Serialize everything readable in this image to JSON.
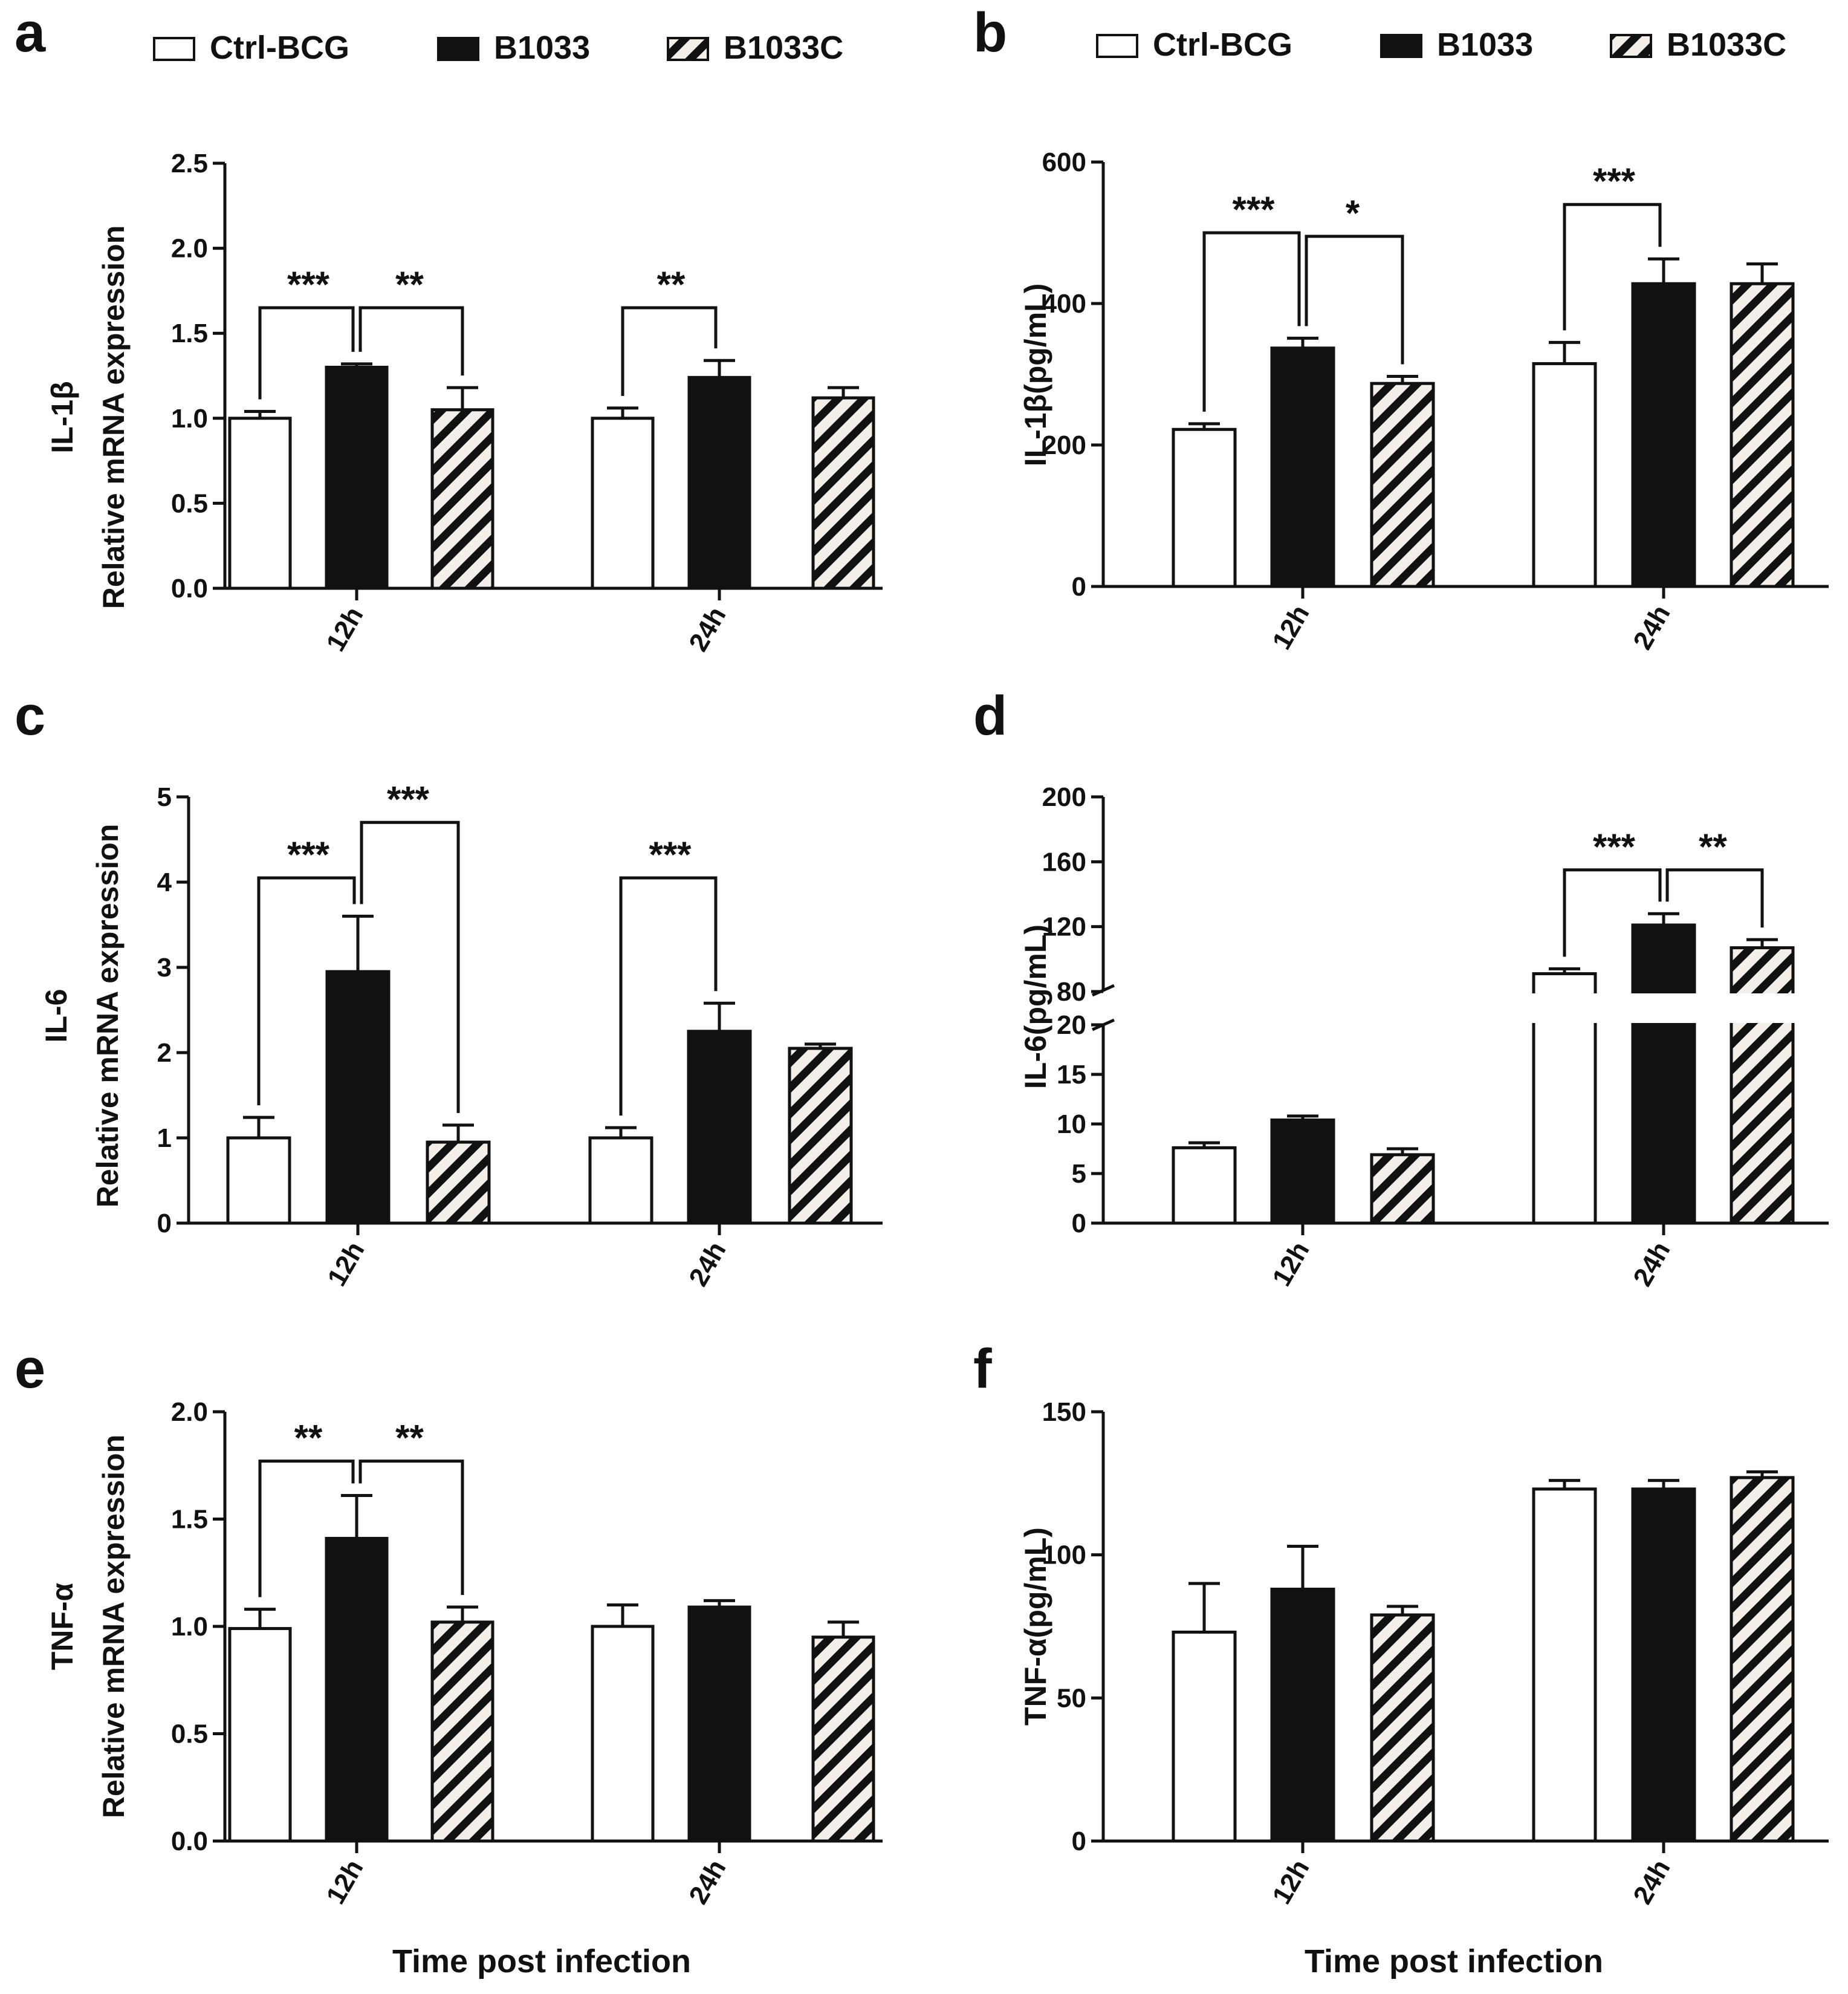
{
  "legend": [
    {
      "name": "Ctrl-BCG",
      "fill": "white"
    },
    {
      "name": "B1033",
      "fill": "black"
    },
    {
      "name": "B1033C",
      "fill": "hatch"
    }
  ],
  "colors": {
    "bar_dark": "#111111",
    "bar_light": "#ffffff",
    "axis": "#111111",
    "hatch_bg": "#f4eee8"
  },
  "chart_data": [
    {
      "panel": "a",
      "type": "bar",
      "ylabel_lines": [
        "IL-1β",
        "Relative mRNA expression"
      ],
      "categories": [
        "12h",
        "24h"
      ],
      "ylim": [
        0,
        2.5
      ],
      "yticks": [
        0.0,
        0.5,
        1.0,
        1.5,
        2.0,
        2.5
      ],
      "ytick_labels": [
        "0.0",
        "0.5",
        "1.0",
        "1.5",
        "2.0",
        "2.5"
      ],
      "xlabel": "",
      "series": [
        {
          "name": "Ctrl-BCG",
          "values": [
            1.0,
            1.0
          ],
          "errors": [
            0.04,
            0.06
          ]
        },
        {
          "name": "B1033",
          "values": [
            1.3,
            1.24
          ],
          "errors": [
            0.02,
            0.1
          ]
        },
        {
          "name": "B1033C",
          "values": [
            1.05,
            1.12
          ],
          "errors": [
            0.13,
            0.06
          ]
        }
      ],
      "significance": [
        {
          "category": 0,
          "from": 0,
          "to": 1,
          "label": "***",
          "level": 1.65
        },
        {
          "category": 0,
          "from": 1,
          "to": 2,
          "label": "**",
          "level": 1.65
        },
        {
          "category": 1,
          "from": 0,
          "to": 1,
          "label": "**",
          "level": 1.65
        }
      ]
    },
    {
      "panel": "b",
      "type": "bar",
      "ylabel_lines": [
        "IL-1β(pg/mL)"
      ],
      "categories": [
        "12h",
        "24h"
      ],
      "ylim": [
        0,
        600
      ],
      "yticks": [
        0,
        200,
        400,
        600
      ],
      "ytick_labels": [
        "0",
        "200",
        "400",
        "600"
      ],
      "xlabel": "",
      "series": [
        {
          "name": "Ctrl-BCG",
          "values": [
            222,
            315
          ],
          "errors": [
            8,
            30
          ]
        },
        {
          "name": "B1033",
          "values": [
            337,
            428
          ],
          "errors": [
            14,
            35
          ]
        },
        {
          "name": "B1033C",
          "values": [
            287,
            428
          ],
          "errors": [
            10,
            28
          ]
        }
      ],
      "significance": [
        {
          "category": 0,
          "from": 0,
          "to": 1,
          "label": "***",
          "level": 500
        },
        {
          "category": 0,
          "from": 1,
          "to": 2,
          "label": "*",
          "level": 495
        },
        {
          "category": 1,
          "from": 0,
          "to": 1,
          "label": "***",
          "level": 540
        }
      ]
    },
    {
      "panel": "c",
      "type": "bar",
      "ylabel_lines": [
        "IL-6",
        "Relative mRNA expression"
      ],
      "categories": [
        "12h",
        "24h"
      ],
      "ylim": [
        0,
        5
      ],
      "yticks": [
        0,
        1,
        2,
        3,
        4,
        5
      ],
      "ytick_labels": [
        "0",
        "1",
        "2",
        "3",
        "4",
        "5"
      ],
      "xlabel": "",
      "series": [
        {
          "name": "Ctrl-BCG",
          "values": [
            1.0,
            1.0
          ],
          "errors": [
            0.24,
            0.12
          ]
        },
        {
          "name": "B1033",
          "values": [
            2.95,
            2.25
          ],
          "errors": [
            0.65,
            0.33
          ]
        },
        {
          "name": "B1033C",
          "values": [
            0.95,
            2.05
          ],
          "errors": [
            0.2,
            0.05
          ]
        }
      ],
      "significance": [
        {
          "category": 0,
          "from": 0,
          "to": 1,
          "label": "***",
          "level": 4.05
        },
        {
          "category": 0,
          "from": 1,
          "to": 2,
          "label": "***",
          "level": 4.7
        },
        {
          "category": 1,
          "from": 0,
          "to": 1,
          "label": "***",
          "level": 4.05
        }
      ]
    },
    {
      "panel": "d",
      "type": "bar",
      "ylabel_lines": [
        "IL-6(pg/mL)"
      ],
      "categories": [
        "12h",
        "24h"
      ],
      "broken_axis": {
        "lower": [
          0,
          20
        ],
        "upper": [
          80,
          200
        ]
      },
      "ylim": [
        0,
        200
      ],
      "yticks": [
        0,
        5,
        10,
        15,
        20,
        80,
        120,
        160,
        200
      ],
      "ytick_labels": [
        "0",
        "5",
        "10",
        "15",
        "20",
        "80",
        "120",
        "160",
        "200"
      ],
      "xlabel": "",
      "series": [
        {
          "name": "Ctrl-BCG",
          "values": [
            7.6,
            91
          ],
          "errors": [
            0.5,
            3
          ]
        },
        {
          "name": "B1033",
          "values": [
            10.4,
            121
          ],
          "errors": [
            0.4,
            7
          ]
        },
        {
          "name": "B1033C",
          "values": [
            6.9,
            107
          ],
          "errors": [
            0.6,
            5
          ]
        }
      ],
      "significance": [
        {
          "category": 1,
          "from": 0,
          "to": 1,
          "label": "***",
          "level": 155
        },
        {
          "category": 1,
          "from": 1,
          "to": 2,
          "label": "**",
          "level": 155
        }
      ]
    },
    {
      "panel": "e",
      "type": "bar",
      "ylabel_lines": [
        "TNF-α",
        "Relative mRNA expression"
      ],
      "categories": [
        "12h",
        "24h"
      ],
      "ylim": [
        0,
        2.0
      ],
      "yticks": [
        0.0,
        0.5,
        1.0,
        1.5,
        2.0
      ],
      "ytick_labels": [
        "0.0",
        "0.5",
        "1.0",
        "1.5",
        "2.0"
      ],
      "xlabel": "Time post infection",
      "series": [
        {
          "name": "Ctrl-BCG",
          "values": [
            0.99,
            1.0
          ],
          "errors": [
            0.09,
            0.1
          ]
        },
        {
          "name": "B1033",
          "values": [
            1.41,
            1.09
          ],
          "errors": [
            0.2,
            0.03
          ]
        },
        {
          "name": "B1033C",
          "values": [
            1.02,
            0.95
          ],
          "errors": [
            0.07,
            0.07
          ]
        }
      ],
      "significance": [
        {
          "category": 0,
          "from": 0,
          "to": 1,
          "label": "**",
          "level": 1.77
        },
        {
          "category": 0,
          "from": 1,
          "to": 2,
          "label": "**",
          "level": 1.77
        }
      ]
    },
    {
      "panel": "f",
      "type": "bar",
      "ylabel_lines": [
        "TNF-α(pg/mL)"
      ],
      "categories": [
        "12h",
        "24h"
      ],
      "ylim": [
        0,
        150
      ],
      "yticks": [
        0,
        50,
        100,
        150
      ],
      "ytick_labels": [
        "0",
        "50",
        "100",
        "150"
      ],
      "xlabel": "Time post infection",
      "series": [
        {
          "name": "Ctrl-BCG",
          "values": [
            73,
            123
          ],
          "errors": [
            17,
            3
          ]
        },
        {
          "name": "B1033",
          "values": [
            88,
            123
          ],
          "errors": [
            15,
            3
          ]
        },
        {
          "name": "B1033C",
          "values": [
            79,
            127
          ],
          "errors": [
            3,
            2
          ]
        }
      ],
      "significance": []
    }
  ]
}
